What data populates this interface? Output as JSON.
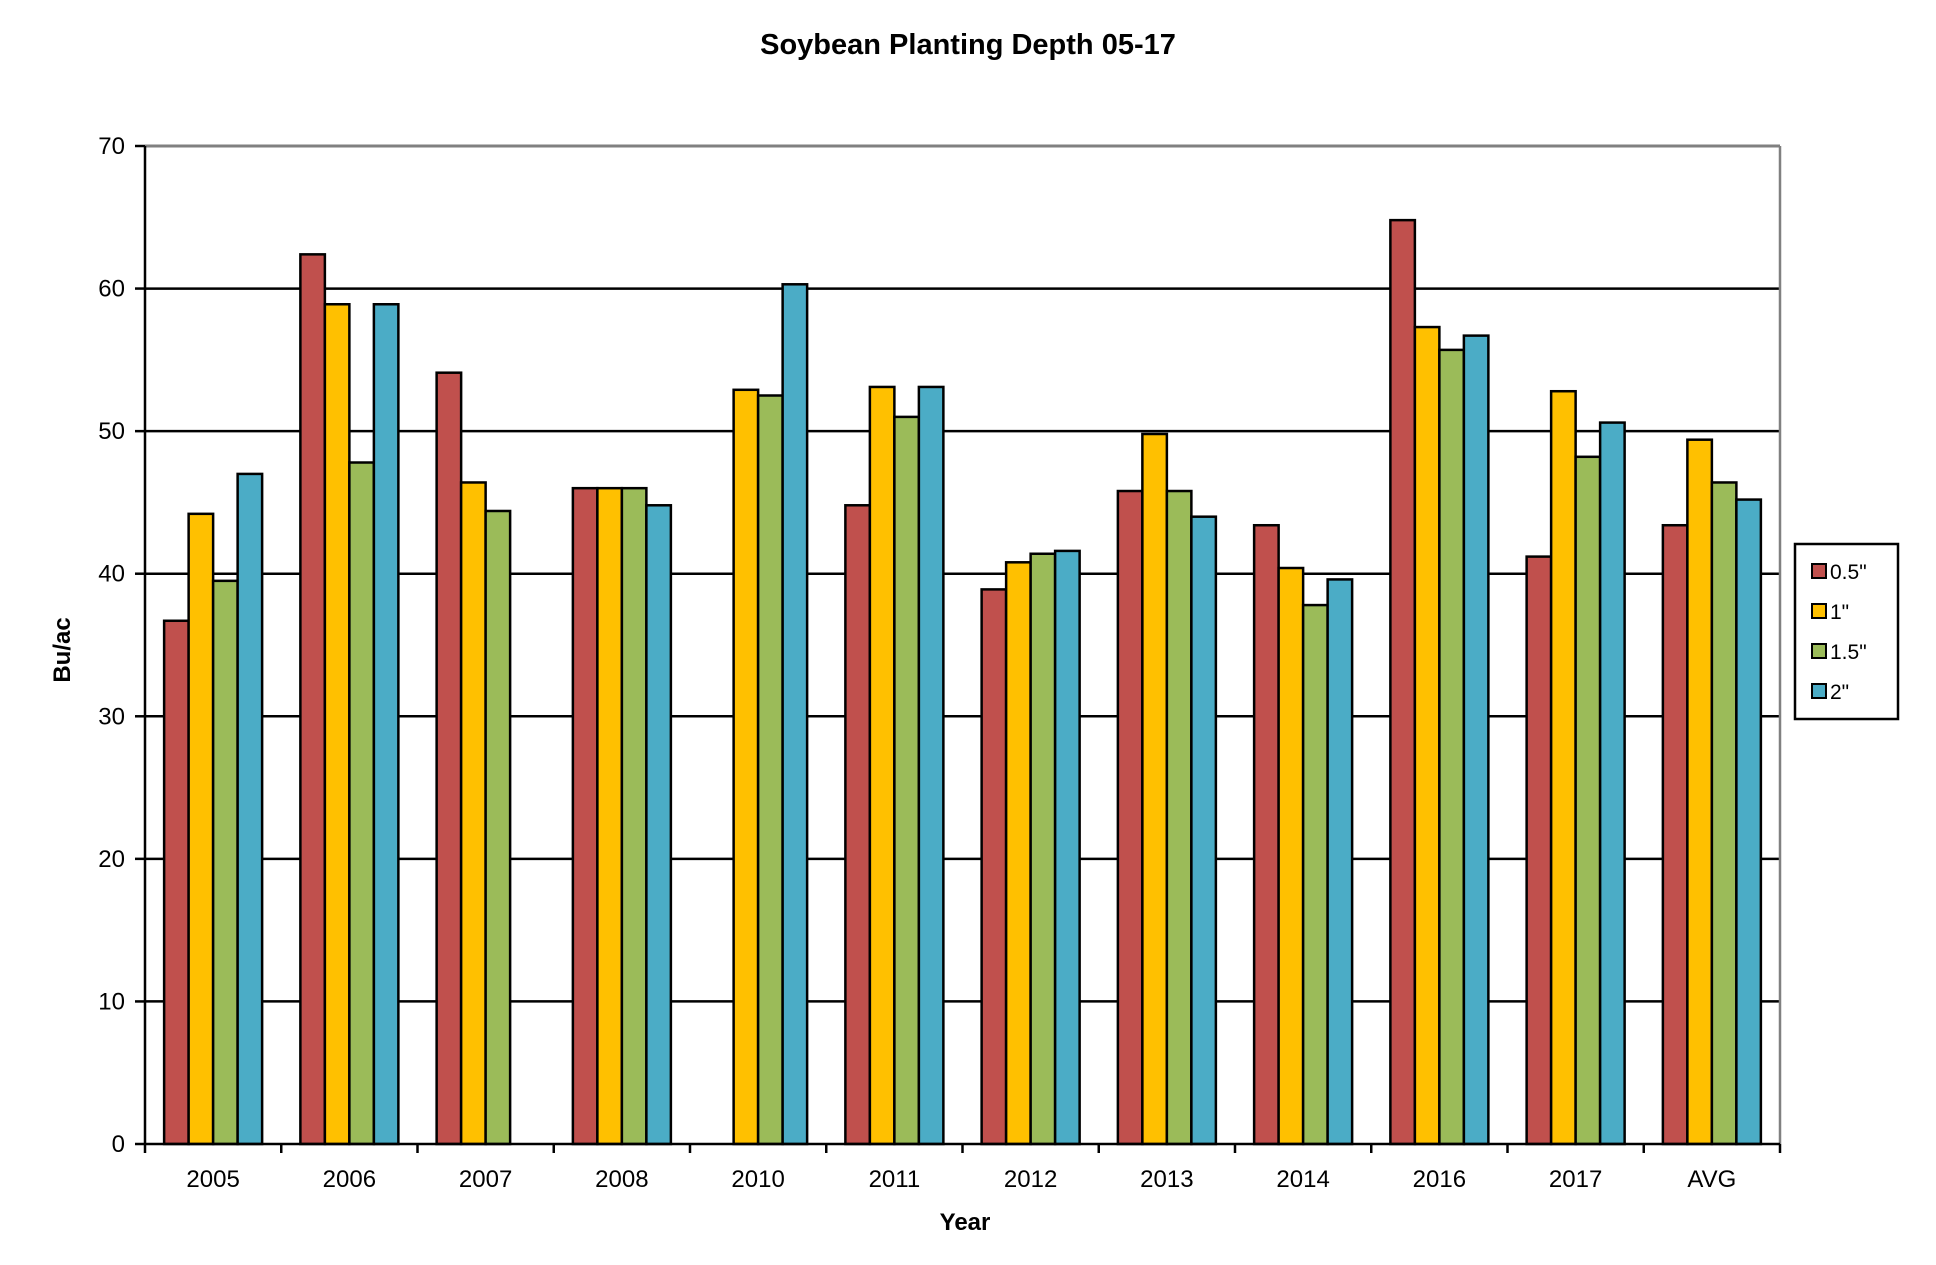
{
  "chart_data": {
    "type": "bar",
    "title": "Soybean Planting Depth 05-17",
    "xlabel": "Year",
    "ylabel": "Bu/ac",
    "ylim": [
      0,
      70
    ],
    "yticks": [
      0,
      10,
      20,
      30,
      40,
      50,
      60,
      70
    ],
    "categories": [
      "2005",
      "2006",
      "2007",
      "2008",
      "2010",
      "2011",
      "2012",
      "2013",
      "2014",
      "2016",
      "2017",
      "AVG"
    ],
    "grid": true,
    "legend_position": "right",
    "series": [
      {
        "name": "0.5\"",
        "color": "#C0504D",
        "values": [
          36.7,
          62.4,
          54.1,
          46.0,
          null,
          44.8,
          38.9,
          45.8,
          43.4,
          64.8,
          41.2,
          43.4
        ]
      },
      {
        "name": "1\"",
        "color": "#FFC000",
        "values": [
          44.2,
          58.9,
          46.4,
          46.0,
          52.9,
          53.1,
          40.8,
          49.8,
          40.4,
          57.3,
          52.8,
          49.4
        ]
      },
      {
        "name": "1.5\"",
        "color": "#9BBB59",
        "values": [
          39.5,
          47.8,
          44.4,
          46.0,
          52.5,
          51.0,
          41.4,
          45.8,
          37.8,
          55.7,
          48.2,
          46.4
        ]
      },
      {
        "name": "2\"",
        "color": "#4BACC6",
        "values": [
          47.0,
          58.9,
          null,
          44.8,
          60.3,
          53.1,
          41.6,
          44.0,
          39.6,
          56.7,
          50.6,
          45.2
        ]
      }
    ]
  }
}
